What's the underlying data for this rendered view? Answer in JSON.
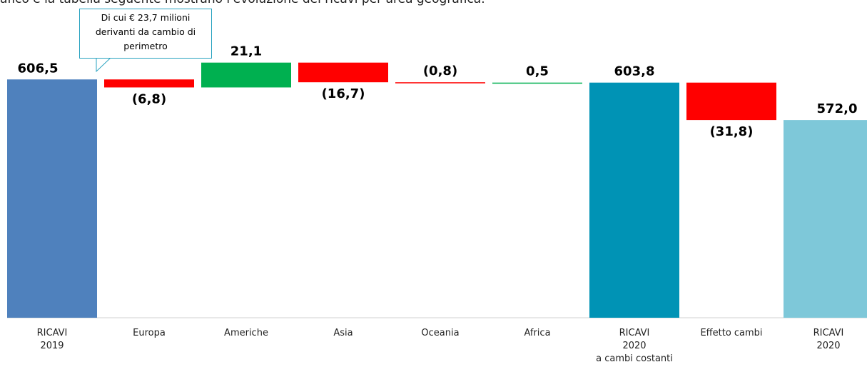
{
  "intro_text": "afico e la tabella seguente mostrano l'evoluzione dei ricavi per area geografica.",
  "chart_data": {
    "type": "waterfall",
    "categories": [
      "RICAVI\n2019",
      "Europa",
      "Americhe",
      "Asia",
      "Oceania",
      "Africa",
      "RICAVI\n2020\na  cambi costanti",
      "Effetto cambi",
      "RICAVI\n2020"
    ],
    "values": [
      606.5,
      -6.8,
      21.1,
      -16.7,
      -0.8,
      0.5,
      603.8,
      -31.8,
      572.0
    ],
    "value_labels": [
      "606,5",
      "(6,8)",
      "21,1",
      "(16,7)",
      "(0,8)",
      "0,5",
      "603,8",
      "(31,8)",
      "572,0"
    ],
    "measure": [
      "absolute",
      "relative",
      "relative",
      "relative",
      "relative",
      "relative",
      "total",
      "relative",
      "total"
    ],
    "colors": [
      "#4f81bd",
      "#ff0000",
      "#00b050",
      "#ff0000",
      "#ff0000",
      "#00b050",
      "#0093b5",
      "#ff0000",
      "#7ec8d9"
    ],
    "ylim": [
      404,
      674
    ],
    "annotation": "Di cui € 23,7 milioni derivanti da cambio di perimetro"
  }
}
